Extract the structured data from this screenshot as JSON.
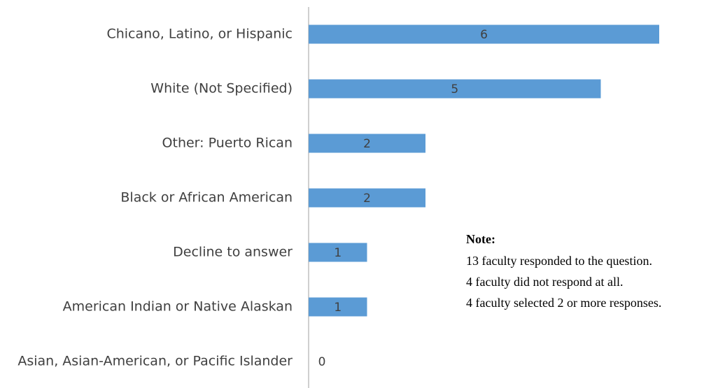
{
  "chart_data": {
    "type": "hbar",
    "categories": [
      "Chicano, Latino, or Hispanic",
      "White (Not Specified)",
      "Other: Puerto Rican",
      "Black or African American",
      "Decline to answer",
      "American Indian or Native Alaskan",
      "Asian, Asian-American, or Pacific Islander"
    ],
    "values": [
      6,
      5,
      2,
      2,
      1,
      1,
      0
    ],
    "color": "#5b9bd5",
    "xlim": [
      0,
      6
    ],
    "note_title": "Note:",
    "note_lines": [
      "13 faculty responded to the question.",
      "4 faculty did not respond at all.",
      "4 faculty selected 2 or more responses."
    ]
  }
}
